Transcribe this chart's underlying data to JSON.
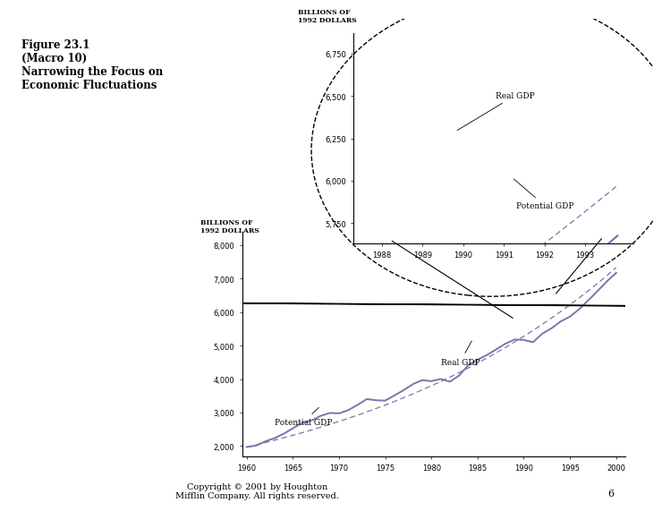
{
  "title_text": "Figure 23.1\n(Macro 10)\nNarrowing the Focus on\nEconomic Fluctuations",
  "copyright_text": "Copyright © 2001 by Houghton\nMifflin Company. All rights reserved.",
  "page_num": "6",
  "main_chart": {
    "ylabel": "BILLIONS OF\n1992 DOLLARS",
    "xlabel_ticks": [
      1960,
      1965,
      1970,
      1975,
      1980,
      1985,
      1990,
      1995,
      2000
    ],
    "yticks": [
      2000,
      3000,
      4000,
      5000,
      6000,
      7000,
      8000
    ],
    "ylim": [
      1700,
      8400
    ],
    "xlim": [
      1959.5,
      2001
    ],
    "real_gdp_label": "Real GDP",
    "potential_gdp_label": "Potential GDP",
    "line_color": "#7777aa"
  },
  "inset_chart": {
    "ylabel": "BILLIONS OF\n1992 DOLLARS",
    "xlabel_ticks": [
      1988,
      1989,
      1990,
      1991,
      1992,
      1993
    ],
    "yticks": [
      5750,
      6000,
      6250,
      6500,
      6750
    ],
    "ylim": [
      5630,
      6870
    ],
    "xlim": [
      1987.3,
      1994.2
    ],
    "real_gdp_label": "Real GDP",
    "potential_gdp_label": "Potential GDP",
    "line_color": "#7777aa"
  },
  "background_color": "#ffffff",
  "real_gdp_years": [
    1960,
    1961,
    1962,
    1963,
    1964,
    1965,
    1966,
    1967,
    1968,
    1969,
    1970,
    1971,
    1972,
    1973,
    1974,
    1975,
    1976,
    1977,
    1978,
    1979,
    1980,
    1981,
    1982,
    1983,
    1984,
    1985,
    1986,
    1987,
    1988,
    1989,
    1990,
    1991,
    1992,
    1993,
    1994,
    1995,
    1996,
    1997,
    1998,
    1999,
    2000
  ],
  "real_gdp_vals": [
    1971,
    2014,
    2140,
    2233,
    2367,
    2528,
    2695,
    2762,
    2900,
    2987,
    2974,
    3073,
    3228,
    3402,
    3365,
    3356,
    3509,
    3668,
    3849,
    3966,
    3936,
    4001,
    3918,
    4103,
    4416,
    4576,
    4713,
    4879,
    5053,
    5178,
    5165,
    5097,
    5351,
    5511,
    5717,
    5859,
    6080,
    6349,
    6625,
    6912,
    7165
  ],
  "potential_gdp_start": 1971,
  "potential_gdp_rate": 0.0328
}
